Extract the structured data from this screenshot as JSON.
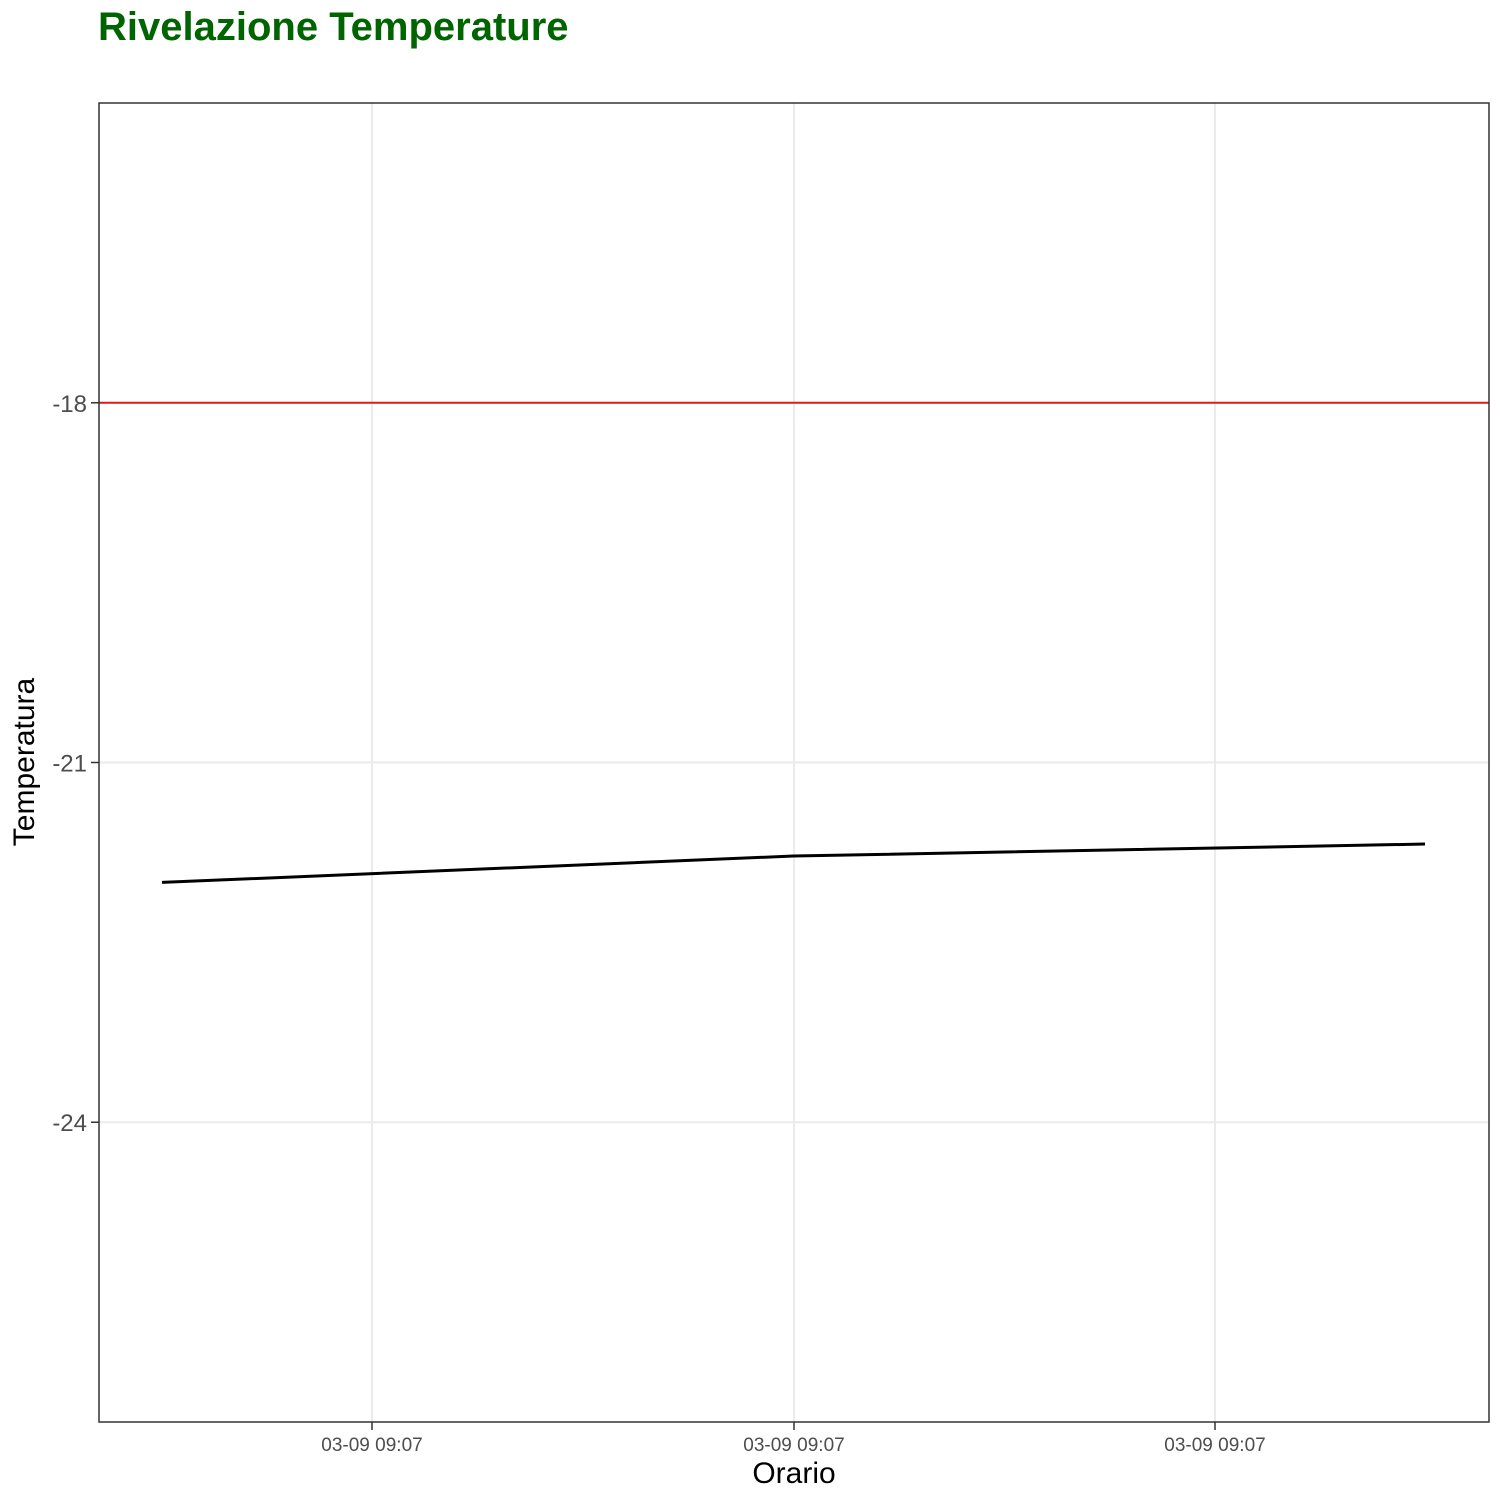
{
  "chart_data": {
    "type": "line",
    "title": "Rivelazione Temperature",
    "xlabel": "Orario",
    "ylabel": "Temperatura",
    "x_tick_labels": [
      "03-09  09:07",
      "03-09  09:07",
      "03-09  09:07"
    ],
    "y_ticks": [
      -18,
      -21,
      -24
    ],
    "ylim": [
      -26.5,
      -15.5
    ],
    "grid": true,
    "series": [
      {
        "values": [
          -22.0,
          -21.78,
          -21.68
        ]
      }
    ],
    "reference_line": {
      "y": -18
    },
    "colors": {
      "title": "#006400",
      "line": "#000000",
      "reference_line": "#e31a1c",
      "panel_border": "#333333",
      "grid": "#ebebeb"
    }
  }
}
